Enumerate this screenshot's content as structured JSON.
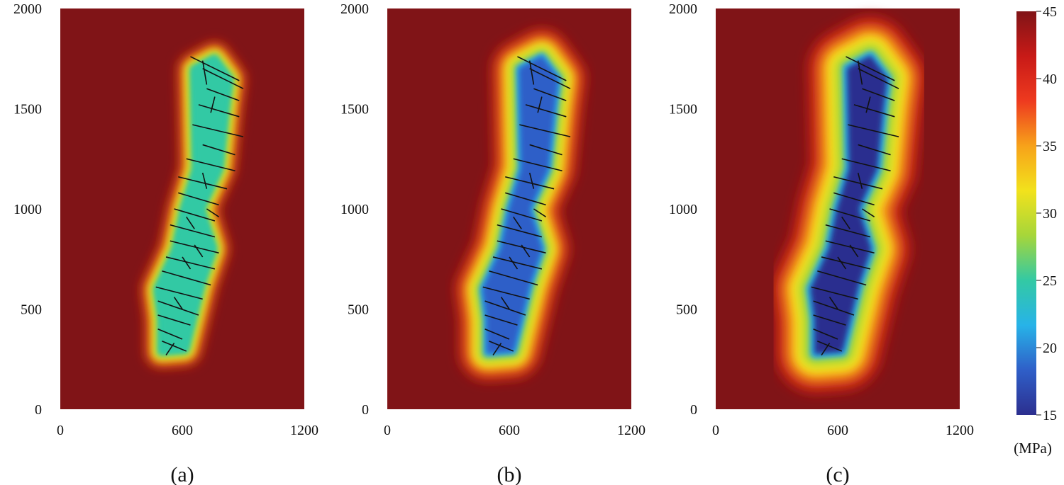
{
  "chart_data": {
    "type": "heatmap",
    "colorscale": [
      "#2c2f8f",
      "#2f5fc8",
      "#27b3e8",
      "#33c9a4",
      "#a6d63a",
      "#f2e21c",
      "#f7a21a",
      "#ee3a1f",
      "#c81a17",
      "#801417"
    ],
    "colorbar": {
      "min": 15,
      "max": 45,
      "ticks": [
        "15",
        "20",
        "25",
        "30",
        "35",
        "40",
        "45"
      ],
      "unit": "(MPa)"
    },
    "xlim": [
      0,
      1200
    ],
    "ylim": [
      0,
      2000
    ],
    "xticks": [
      "0",
      "600",
      "1200"
    ],
    "yticks": [
      "0",
      "500",
      "1000",
      "1500",
      "2000"
    ],
    "background_value": 45,
    "fracture_color": "#111111",
    "zone_outline": [
      [
        490,
        280
      ],
      [
        620,
        290
      ],
      [
        700,
        620
      ],
      [
        760,
        800
      ],
      [
        700,
        1000
      ],
      [
        790,
        1200
      ],
      [
        820,
        1500
      ],
      [
        840,
        1650
      ],
      [
        760,
        1760
      ],
      [
        650,
        1700
      ],
      [
        660,
        1200
      ],
      [
        600,
        1000
      ],
      [
        560,
        800
      ],
      [
        470,
        600
      ],
      [
        490,
        450
      ]
    ],
    "fractures": [
      [
        [
          640,
          1760
        ],
        [
          880,
          1640
        ]
      ],
      [
        [
          700,
          1700
        ],
        [
          900,
          1600
        ]
      ],
      [
        [
          720,
          1600
        ],
        [
          880,
          1540
        ]
      ],
      [
        [
          680,
          1520
        ],
        [
          880,
          1460
        ]
      ],
      [
        [
          650,
          1420
        ],
        [
          900,
          1360
        ]
      ],
      [
        [
          700,
          1320
        ],
        [
          860,
          1270
        ]
      ],
      [
        [
          620,
          1250
        ],
        [
          860,
          1190
        ]
      ],
      [
        [
          580,
          1160
        ],
        [
          820,
          1100
        ]
      ],
      [
        [
          580,
          1080
        ],
        [
          780,
          1020
        ]
      ],
      [
        [
          560,
          1000
        ],
        [
          760,
          940
        ]
      ],
      [
        [
          540,
          920
        ],
        [
          760,
          860
        ]
      ],
      [
        [
          540,
          840
        ],
        [
          780,
          780
        ]
      ],
      [
        [
          520,
          760
        ],
        [
          760,
          700
        ]
      ],
      [
        [
          500,
          690
        ],
        [
          740,
          620
        ]
      ],
      [
        [
          470,
          610
        ],
        [
          700,
          550
        ]
      ],
      [
        [
          480,
          540
        ],
        [
          680,
          470
        ]
      ],
      [
        [
          480,
          470
        ],
        [
          640,
          420
        ]
      ],
      [
        [
          480,
          400
        ],
        [
          600,
          350
        ]
      ],
      [
        [
          500,
          340
        ],
        [
          620,
          290
        ]
      ],
      [
        [
          520,
          270
        ],
        [
          560,
          330
        ]
      ],
      [
        [
          700,
          1740
        ],
        [
          720,
          1620
        ]
      ],
      [
        [
          760,
          1560
        ],
        [
          740,
          1480
        ]
      ],
      [
        [
          700,
          1180
        ],
        [
          720,
          1100
        ]
      ],
      [
        [
          620,
          960
        ],
        [
          660,
          900
        ]
      ],
      [
        [
          600,
          760
        ],
        [
          640,
          700
        ]
      ],
      [
        [
          560,
          560
        ],
        [
          600,
          500
        ]
      ],
      [
        [
          660,
          820
        ],
        [
          700,
          760
        ]
      ],
      [
        [
          720,
          1000
        ],
        [
          780,
          960
        ]
      ]
    ],
    "panels": [
      {
        "caption": "(a)",
        "core_min": 25,
        "spread_scale": 0.55
      },
      {
        "caption": "(b)",
        "core_min": 17,
        "spread_scale": 1.1
      },
      {
        "caption": "(c)",
        "core_min": 16,
        "spread_scale": 1.6
      }
    ]
  }
}
